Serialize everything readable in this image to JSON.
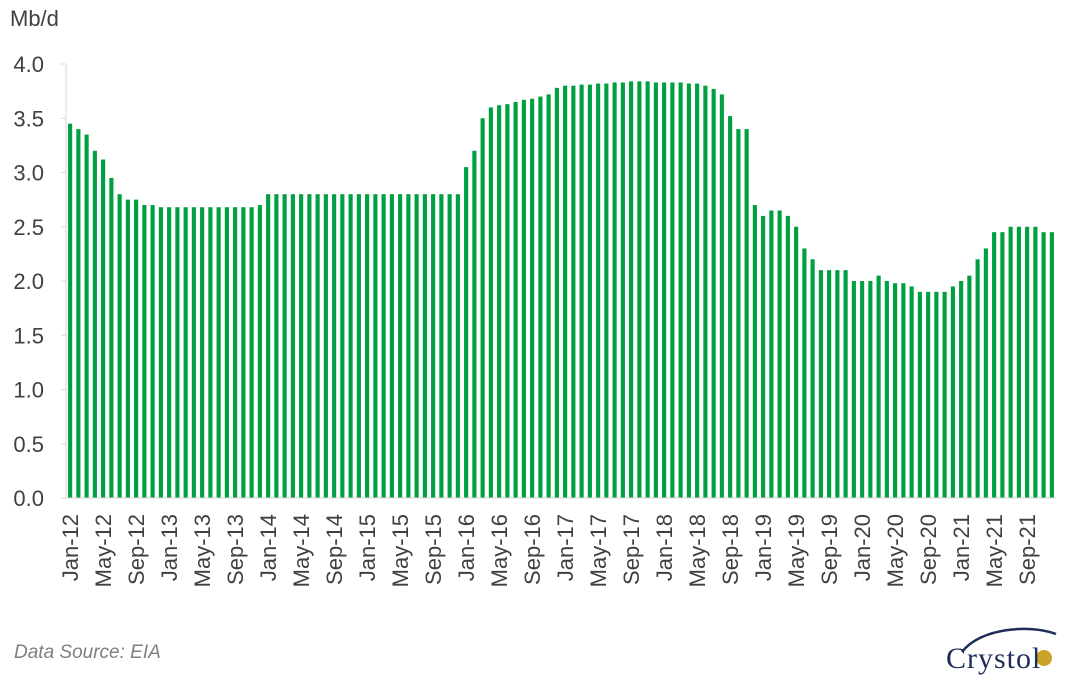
{
  "chart_data": {
    "type": "bar",
    "ylabel": "Mb/d",
    "ylim": [
      0,
      4.0
    ],
    "yticks": [
      "0.0",
      "0.5",
      "1.0",
      "1.5",
      "2.0",
      "2.5",
      "3.0",
      "3.5",
      "4.0"
    ],
    "grid": false,
    "bar_color": "#00a040",
    "categories": [
      "Jan-12",
      "Feb-12",
      "Mar-12",
      "Apr-12",
      "May-12",
      "Jun-12",
      "Jul-12",
      "Aug-12",
      "Sep-12",
      "Oct-12",
      "Nov-12",
      "Dec-12",
      "Jan-13",
      "Feb-13",
      "Mar-13",
      "Apr-13",
      "May-13",
      "Jun-13",
      "Jul-13",
      "Aug-13",
      "Sep-13",
      "Oct-13",
      "Nov-13",
      "Dec-13",
      "Jan-14",
      "Feb-14",
      "Mar-14",
      "Apr-14",
      "May-14",
      "Jun-14",
      "Jul-14",
      "Aug-14",
      "Sep-14",
      "Oct-14",
      "Nov-14",
      "Dec-14",
      "Jan-15",
      "Feb-15",
      "Mar-15",
      "Apr-15",
      "May-15",
      "Jun-15",
      "Jul-15",
      "Aug-15",
      "Sep-15",
      "Oct-15",
      "Nov-15",
      "Dec-15",
      "Jan-16",
      "Feb-16",
      "Mar-16",
      "Apr-16",
      "May-16",
      "Jun-16",
      "Jul-16",
      "Aug-16",
      "Sep-16",
      "Oct-16",
      "Nov-16",
      "Dec-16",
      "Jan-17",
      "Feb-17",
      "Mar-17",
      "Apr-17",
      "May-17",
      "Jun-17",
      "Jul-17",
      "Aug-17",
      "Sep-17",
      "Oct-17",
      "Nov-17",
      "Dec-17",
      "Jan-18",
      "Feb-18",
      "Mar-18",
      "Apr-18",
      "May-18",
      "Jun-18",
      "Jul-18",
      "Aug-18",
      "Sep-18",
      "Oct-18",
      "Nov-18",
      "Dec-18",
      "Jan-19",
      "Feb-19",
      "Mar-19",
      "Apr-19",
      "May-19",
      "Jun-19",
      "Jul-19",
      "Aug-19",
      "Sep-19",
      "Oct-19",
      "Nov-19",
      "Dec-19",
      "Jan-20",
      "Feb-20",
      "Mar-20",
      "Apr-20",
      "May-20",
      "Jun-20",
      "Jul-20",
      "Aug-20",
      "Sep-20",
      "Oct-20",
      "Nov-20",
      "Dec-20",
      "Jan-21",
      "Feb-21",
      "Mar-21",
      "Apr-21",
      "May-21",
      "Jun-21",
      "Jul-21",
      "Aug-21",
      "Sep-21",
      "Oct-21",
      "Nov-21",
      "Dec-21"
    ],
    "xtick_labels": [
      "Jan-12",
      "May-12",
      "Sep-12",
      "Jan-13",
      "May-13",
      "Sep-13",
      "Jan-14",
      "May-14",
      "Sep-14",
      "Jan-15",
      "May-15",
      "Sep-15",
      "Jan-16",
      "May-16",
      "Sep-16",
      "Jan-17",
      "May-17",
      "Sep-17",
      "Jan-18",
      "May-18",
      "Sep-18",
      "Jan-19",
      "May-19",
      "Sep-19",
      "Jan-20",
      "May-20",
      "Sep-20",
      "Jan-21",
      "May-21",
      "Sep-21"
    ],
    "values": [
      3.45,
      3.4,
      3.35,
      3.2,
      3.12,
      2.95,
      2.8,
      2.75,
      2.75,
      2.7,
      2.7,
      2.68,
      2.68,
      2.68,
      2.68,
      2.68,
      2.68,
      2.68,
      2.68,
      2.68,
      2.68,
      2.68,
      2.68,
      2.7,
      2.8,
      2.8,
      2.8,
      2.8,
      2.8,
      2.8,
      2.8,
      2.8,
      2.8,
      2.8,
      2.8,
      2.8,
      2.8,
      2.8,
      2.8,
      2.8,
      2.8,
      2.8,
      2.8,
      2.8,
      2.8,
      2.8,
      2.8,
      2.8,
      3.05,
      3.2,
      3.5,
      3.6,
      3.62,
      3.63,
      3.65,
      3.67,
      3.68,
      3.7,
      3.72,
      3.78,
      3.8,
      3.8,
      3.81,
      3.81,
      3.82,
      3.82,
      3.83,
      3.83,
      3.84,
      3.84,
      3.84,
      3.83,
      3.83,
      3.83,
      3.83,
      3.82,
      3.82,
      3.8,
      3.77,
      3.72,
      3.52,
      3.4,
      3.4,
      2.7,
      2.6,
      2.65,
      2.65,
      2.6,
      2.5,
      2.3,
      2.2,
      2.1,
      2.1,
      2.1,
      2.1,
      2.0,
      2.0,
      2.0,
      2.05,
      2.0,
      1.98,
      1.98,
      1.95,
      1.9,
      1.9,
      1.9,
      1.9,
      1.95,
      2.0,
      2.05,
      2.2,
      2.3,
      2.45,
      2.45,
      2.5,
      2.5,
      2.5,
      2.5,
      2.45,
      2.45
    ]
  },
  "footer": {
    "source": "Data Source: EIA",
    "logo_text": "Crystol"
  }
}
